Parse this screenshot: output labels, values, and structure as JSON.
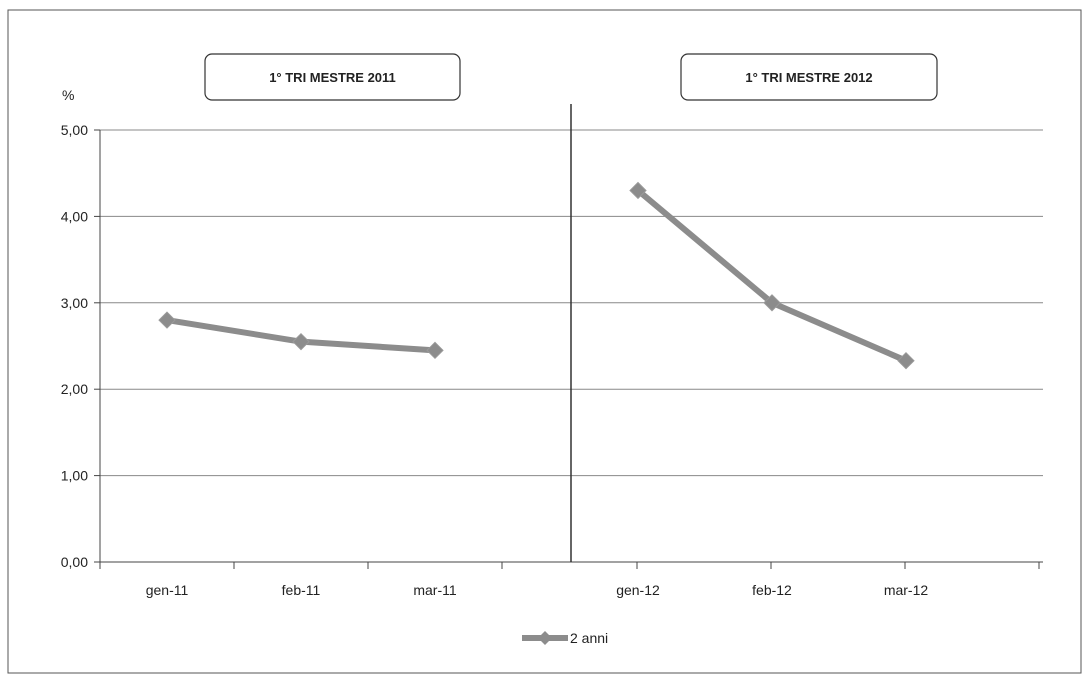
{
  "chart_data": {
    "type": "line",
    "ylabel": "%",
    "ylim": [
      0,
      5
    ],
    "y_ticks": [
      "0,00",
      "1,00",
      "2,00",
      "3,00",
      "4,00",
      "5,00"
    ],
    "y_tick_values": [
      0,
      1,
      2,
      3,
      4,
      5
    ],
    "grid": true,
    "legend_position": "bottom",
    "panels": [
      {
        "title": "1° TRI MESTRE 2011",
        "categories": [
          "gen-11",
          "feb-11",
          "mar-11"
        ]
      },
      {
        "title": "1° TRI MESTRE 2012",
        "categories": [
          "gen-12",
          "feb-12",
          "mar-12"
        ]
      }
    ],
    "series": [
      {
        "name": "2 anni",
        "color": "#8c8c8c",
        "points": [
          {
            "x": "gen-11",
            "y": 2.8
          },
          {
            "x": "feb-11",
            "y": 2.55
          },
          {
            "x": "mar-11",
            "y": 2.45
          },
          {
            "x": "gen-12",
            "y": 4.3
          },
          {
            "x": "feb-12",
            "y": 3.0
          },
          {
            "x": "mar-12",
            "y": 2.33
          }
        ],
        "segments": [
          [
            0,
            1,
            2
          ],
          [
            3,
            4,
            5
          ]
        ]
      }
    ]
  }
}
